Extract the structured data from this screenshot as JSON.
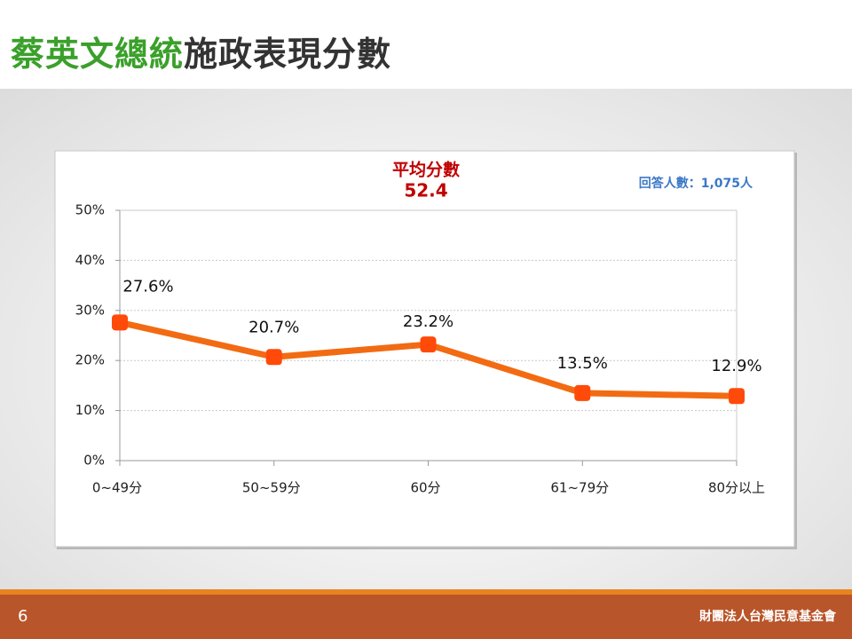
{
  "chart_data": {
    "type": "line",
    "title_highlight": "蔡英文總統",
    "title": "施政表現分數",
    "annotation_label": "平均分數",
    "annotation_value": 52.4,
    "respondents": "回答人數：1,075人",
    "categories": [
      "0~49分",
      "50~59分",
      "60分",
      "61~79分",
      "80分以上"
    ],
    "values": [
      27.6,
      20.7,
      23.2,
      13.5,
      12.9
    ],
    "value_labels": [
      "27.6%",
      "20.7%",
      "23.2%",
      "13.5%",
      "12.9%"
    ],
    "color": "#f26b12",
    "marker_color": "#ff4a0a",
    "ylim": [
      0,
      50
    ],
    "yticks": [
      {
        "value": 0,
        "label": "0%"
      },
      {
        "value": 10,
        "label": "10%"
      },
      {
        "value": 20,
        "label": "20%"
      },
      {
        "value": 30,
        "label": "30%"
      },
      {
        "value": 40,
        "label": "40%"
      },
      {
        "value": 50,
        "label": "50%"
      }
    ],
    "grid": true
  },
  "page_number": 6,
  "organization": "財團法人台灣民意基金會"
}
